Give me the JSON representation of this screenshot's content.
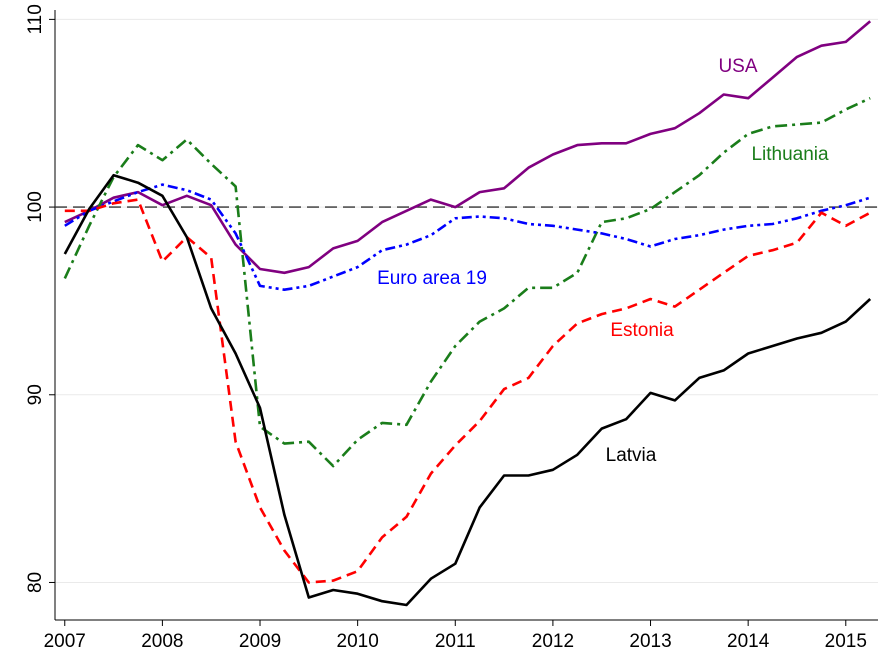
{
  "chart_data": {
    "type": "line",
    "x": [
      2007,
      2007.25,
      2007.5,
      2007.75,
      2008,
      2008.25,
      2008.5,
      2008.75,
      2009,
      2009.25,
      2009.5,
      2009.75,
      2010,
      2010.25,
      2010.5,
      2010.75,
      2011,
      2011.25,
      2011.5,
      2011.75,
      2012,
      2012.25,
      2012.5,
      2012.75,
      2013,
      2013.25,
      2013.5,
      2013.75,
      2014,
      2014.25,
      2014.5,
      2014.75,
      2015,
      2015.25
    ],
    "series": [
      {
        "name": "USA",
        "color": "#800080",
        "style": "solid",
        "values": [
          99.2,
          99.8,
          100.5,
          100.8,
          100.1,
          100.6,
          100.1,
          98.0,
          96.7,
          96.5,
          96.8,
          97.8,
          98.2,
          99.2,
          99.8,
          100.4,
          100.0,
          100.8,
          101.0,
          102.1,
          102.8,
          103.3,
          103.4,
          103.4,
          103.9,
          104.2,
          105.0,
          106.0,
          105.8,
          106.9,
          108.0,
          108.6,
          108.8,
          109.9
        ]
      },
      {
        "name": "Lithuania",
        "color": "#1a7d1a",
        "style": "dashdot",
        "values": [
          96.2,
          99.0,
          101.6,
          103.3,
          102.5,
          103.6,
          102.3,
          101.1,
          88.3,
          87.4,
          87.5,
          86.2,
          87.6,
          88.5,
          88.4,
          90.7,
          92.6,
          93.9,
          94.6,
          95.7,
          95.7,
          96.5,
          99.2,
          99.4,
          99.9,
          100.8,
          101.7,
          102.9,
          103.9,
          104.3,
          104.4,
          104.5,
          105.2,
          105.8
        ]
      },
      {
        "name": "Euro area 19",
        "color": "#0000ff",
        "style": "dashdotdot",
        "values": [
          99.0,
          99.8,
          100.3,
          100.8,
          101.2,
          100.9,
          100.4,
          98.6,
          95.8,
          95.6,
          95.8,
          96.3,
          96.8,
          97.7,
          98.0,
          98.5,
          99.4,
          99.5,
          99.4,
          99.1,
          99.0,
          98.8,
          98.6,
          98.3,
          97.9,
          98.3,
          98.5,
          98.8,
          99.0,
          99.1,
          99.4,
          99.8,
          100.1,
          100.5
        ]
      },
      {
        "name": "Estonia",
        "color": "#ff0000",
        "style": "dashed",
        "values": [
          99.8,
          99.8,
          100.2,
          100.4,
          97.1,
          98.4,
          97.3,
          87.5,
          84.0,
          81.7,
          80.0,
          80.1,
          80.6,
          82.4,
          83.5,
          85.8,
          87.3,
          88.6,
          90.3,
          90.9,
          92.6,
          93.8,
          94.3,
          94.6,
          95.1,
          94.7,
          95.6,
          96.5,
          97.4,
          97.7,
          98.1,
          99.7,
          99.0,
          99.7
        ]
      },
      {
        "name": "Latvia",
        "color": "#000000",
        "style": "solid",
        "values": [
          97.5,
          99.9,
          101.7,
          101.3,
          100.6,
          98.4,
          94.6,
          92.2,
          89.3,
          83.6,
          79.2,
          79.6,
          79.4,
          79.0,
          78.8,
          80.2,
          81.0,
          84.0,
          85.7,
          85.7,
          86.0,
          86.8,
          88.2,
          88.7,
          90.1,
          89.7,
          90.9,
          91.3,
          92.2,
          92.6,
          93.0,
          93.3,
          93.9,
          95.1
        ]
      }
    ],
    "reference_line": 100,
    "xlim": [
      2006.9,
      2015.33
    ],
    "xticks": [
      2007,
      2008,
      2009,
      2010,
      2011,
      2012,
      2013,
      2014,
      2015
    ],
    "ylim": [
      78,
      110.5
    ],
    "yticks": [
      80,
      90,
      100,
      110
    ],
    "grid": true
  }
}
